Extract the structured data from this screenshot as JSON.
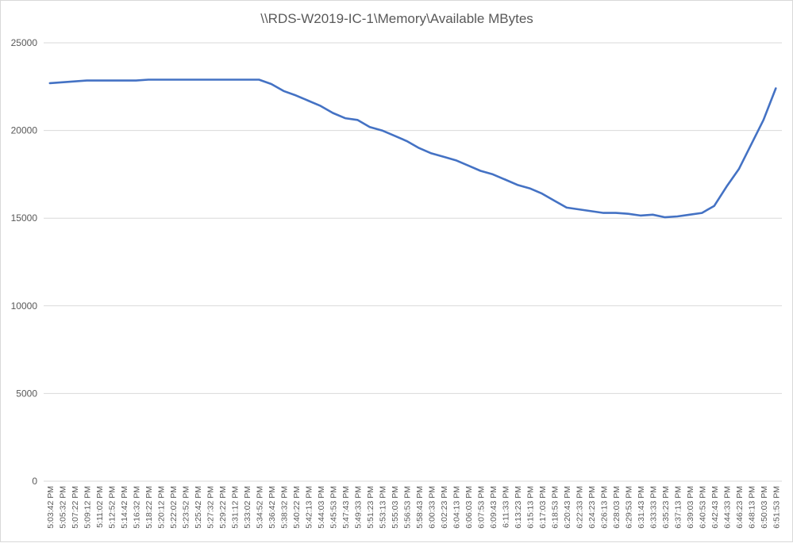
{
  "chart_data": {
    "type": "line",
    "title": "\\\\RDS-W2019-IC-1\\Memory\\Available MBytes",
    "xlabel": "",
    "ylabel": "",
    "ylim": [
      0,
      25000
    ],
    "yticks": [
      0,
      5000,
      10000,
      15000,
      20000,
      25000
    ],
    "grid": true,
    "legend": "none",
    "line_color": "#4472C4",
    "grid_color": "#d9d9d9",
    "categories": [
      "5:03:42 PM",
      "5:05:32 PM",
      "5:07:22 PM",
      "5:09:12 PM",
      "5:11:02 PM",
      "5:12:52 PM",
      "5:14:42 PM",
      "5:16:32 PM",
      "5:18:22 PM",
      "5:20:12 PM",
      "5:22:02 PM",
      "5:23:52 PM",
      "5:25:42 PM",
      "5:27:32 PM",
      "5:29:22 PM",
      "5:31:12 PM",
      "5:33:02 PM",
      "5:34:52 PM",
      "5:36:42 PM",
      "5:38:32 PM",
      "5:40:22 PM",
      "5:42:13 PM",
      "5:44:03 PM",
      "5:45:53 PM",
      "5:47:43 PM",
      "5:49:33 PM",
      "5:51:23 PM",
      "5:53:13 PM",
      "5:55:03 PM",
      "5:56:53 PM",
      "5:58:43 PM",
      "6:00:33 PM",
      "6:02:23 PM",
      "6:04:13 PM",
      "6:06:03 PM",
      "6:07:53 PM",
      "6:09:43 PM",
      "6:11:33 PM",
      "6:13:23 PM",
      "6:15:13 PM",
      "6:17:03 PM",
      "6:18:53 PM",
      "6:20:43 PM",
      "6:22:33 PM",
      "6:24:23 PM",
      "6:26:13 PM",
      "6:28:03 PM",
      "6:29:53 PM",
      "6:31:43 PM",
      "6:33:33 PM",
      "6:35:23 PM",
      "6:37:13 PM",
      "6:39:03 PM",
      "6:40:53 PM",
      "6:42:43 PM",
      "6:44:33 PM",
      "6:46:23 PM",
      "6:48:13 PM",
      "6:50:03 PM",
      "6:51:53 PM"
    ],
    "values": [
      22700,
      22750,
      22800,
      22850,
      22850,
      22850,
      22850,
      22850,
      22900,
      22900,
      22900,
      22900,
      22900,
      22900,
      22900,
      22900,
      22900,
      22900,
      22650,
      22250,
      22000,
      21700,
      21400,
      21000,
      20700,
      20600,
      20200,
      20000,
      19700,
      19400,
      19000,
      18700,
      18500,
      18300,
      18000,
      17700,
      17500,
      17200,
      16900,
      16700,
      16400,
      16000,
      15600,
      15500,
      15400,
      15300,
      15300,
      15250,
      15150,
      15200,
      15050,
      15100,
      15200,
      15300,
      15700,
      16800,
      17800,
      19200,
      20600,
      22400
    ]
  }
}
